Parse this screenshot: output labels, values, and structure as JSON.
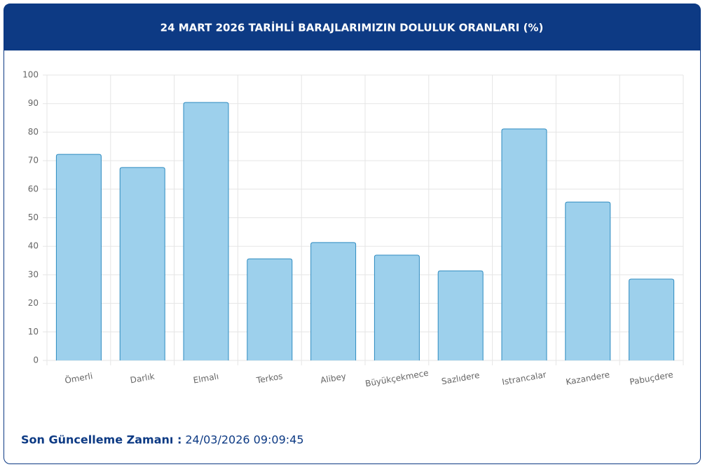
{
  "chart_data": {
    "type": "bar",
    "title": "24 MART 2026 TARİHLİ BARAJLARIMIZIN DOLULUK ORANLARI (%)",
    "categories": [
      "Ömerli",
      "Darlık",
      "Elmalı",
      "Terkos",
      "Alibey",
      "Büyükçekmece",
      "Sazlıdere",
      "Istrancalar",
      "Kazandere",
      "Pabuçdere"
    ],
    "values": [
      72.2,
      67.6,
      90.4,
      35.6,
      41.3,
      36.9,
      31.4,
      81.1,
      55.5,
      28.5
    ],
    "color": "#9dd0ec",
    "border_color": "#2e8bc0",
    "ylim": [
      0,
      100
    ],
    "yticks": [
      0,
      10,
      20,
      30,
      40,
      50,
      60,
      70,
      80,
      90,
      100
    ],
    "grid": true
  },
  "footer": {
    "label": "Son Güncelleme Zamanı :",
    "value": "24/03/2026 09:09:45"
  }
}
